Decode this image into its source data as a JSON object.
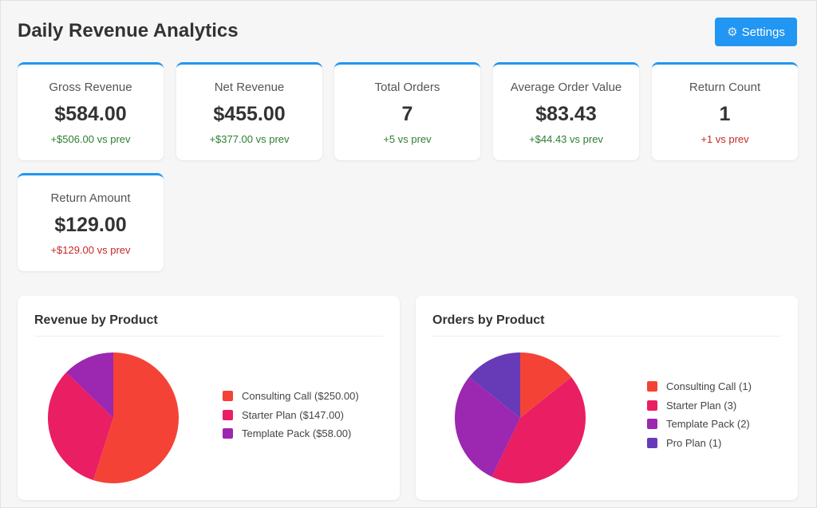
{
  "header": {
    "title": "Daily Revenue Analytics",
    "settings_label": "Settings",
    "settings_icon": "gear-icon"
  },
  "colors": {
    "accent": "#2196f3",
    "positive": "#2e7d32",
    "negative": "#c62828"
  },
  "metrics": [
    {
      "label": "Gross Revenue",
      "value": "$584.00",
      "delta": "+$506.00 vs prev",
      "trend": "pos"
    },
    {
      "label": "Net Revenue",
      "value": "$455.00",
      "delta": "+$377.00 vs prev",
      "trend": "pos"
    },
    {
      "label": "Total Orders",
      "value": "7",
      "delta": "+5 vs prev",
      "trend": "pos"
    },
    {
      "label": "Average Order Value",
      "value": "$83.43",
      "delta": "+$44.43 vs prev",
      "trend": "pos"
    },
    {
      "label": "Return Count",
      "value": "1",
      "delta": "+1 vs prev",
      "trend": "neg"
    },
    {
      "label": "Return Amount",
      "value": "$129.00",
      "delta": "+$129.00 vs prev",
      "trend": "neg"
    }
  ],
  "chart_data": [
    {
      "type": "pie",
      "title": "Revenue by Product",
      "categories": [
        "Consulting Call",
        "Starter Plan",
        "Template Pack"
      ],
      "values": [
        250,
        147,
        58
      ],
      "legend_labels": [
        "Consulting Call ($250.00)",
        "Starter Plan ($147.00)",
        "Template Pack ($58.00)"
      ],
      "colors": [
        "#f44336",
        "#e91e63",
        "#9c27b0"
      ],
      "legend_placement": "right"
    },
    {
      "type": "pie",
      "title": "Orders by Product",
      "categories": [
        "Consulting Call",
        "Starter Plan",
        "Template Pack",
        "Pro Plan"
      ],
      "values": [
        1,
        3,
        2,
        1
      ],
      "legend_labels": [
        "Consulting Call (1)",
        "Starter Plan (3)",
        "Template Pack (2)",
        "Pro Plan (1)"
      ],
      "colors": [
        "#f44336",
        "#e91e63",
        "#9c27b0",
        "#673ab7"
      ],
      "legend_placement": "right"
    }
  ]
}
